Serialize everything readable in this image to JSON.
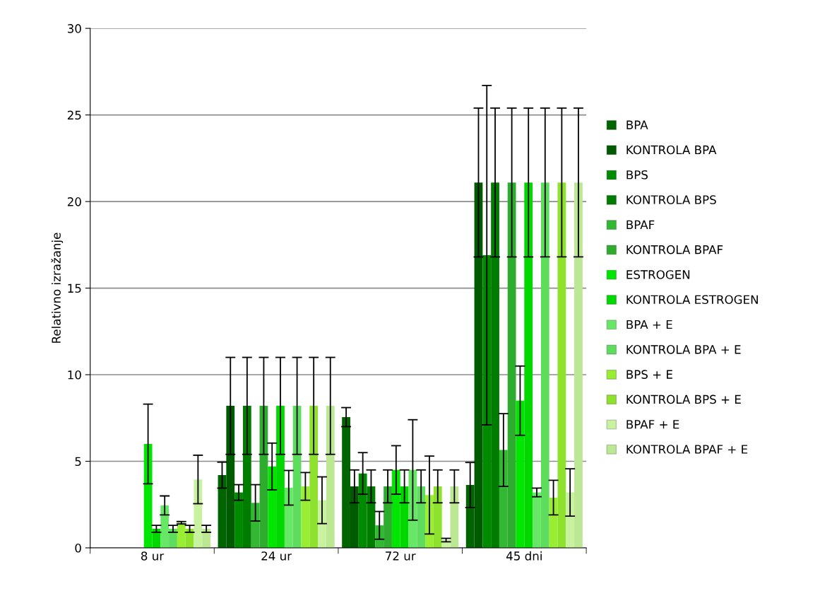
{
  "chart_data": {
    "type": "bar",
    "ylabel": "Relativno izražanje",
    "categories": [
      "8 ur",
      "24 ur",
      "72 ur",
      "45 dni"
    ],
    "ylim": [
      0,
      30
    ],
    "yticks": [
      0,
      5,
      10,
      15,
      20,
      25,
      30
    ],
    "grid": "y",
    "legend": "right",
    "series": [
      {
        "name": "BPA",
        "color": "#006400",
        "values": [
          0,
          4.2,
          7.55,
          3.63
        ],
        "errors": [
          null,
          0.75,
          0.55,
          1.3
        ]
      },
      {
        "name": "KONTROLA BPA",
        "color": "#005a00",
        "values": [
          0,
          8.2,
          3.55,
          21.1
        ],
        "errors": [
          null,
          2.8,
          0.95,
          4.3
        ]
      },
      {
        "name": "BPS",
        "color": "#008a00",
        "values": [
          0,
          3.2,
          4.3,
          16.9
        ],
        "errors": [
          null,
          0.45,
          1.2,
          9.8
        ]
      },
      {
        "name": "KONTROLA BPS",
        "color": "#007c00",
        "values": [
          0,
          8.2,
          3.55,
          21.1
        ],
        "errors": [
          null,
          2.8,
          0.95,
          4.3
        ]
      },
      {
        "name": "BPAF",
        "color": "#33b833",
        "values": [
          0,
          2.6,
          1.3,
          5.65
        ],
        "errors": [
          null,
          1.05,
          0.8,
          2.1
        ]
      },
      {
        "name": "KONTROLA BPAF",
        "color": "#2eac2e",
        "values": [
          0,
          8.2,
          3.55,
          21.1
        ],
        "errors": [
          null,
          2.8,
          0.95,
          4.3
        ]
      },
      {
        "name": "ESTROGEN",
        "color": "#00e600",
        "values": [
          6.0,
          4.7,
          4.5,
          8.5
        ],
        "errors": [
          2.3,
          1.35,
          1.4,
          2.0
        ]
      },
      {
        "name": "KONTROLA ESTROGEN",
        "color": "#00d800",
        "values": [
          1.1,
          8.2,
          3.55,
          21.1
        ],
        "errors": [
          0.2,
          2.8,
          0.95,
          4.3
        ]
      },
      {
        "name": "BPA + E",
        "color": "#66e866",
        "values": [
          2.45,
          3.47,
          4.5,
          3.2
        ],
        "errors": [
          0.55,
          1.0,
          2.9,
          0.25
        ]
      },
      {
        "name": "KONTROLA BPA + E",
        "color": "#5edc5e",
        "values": [
          1.1,
          8.2,
          3.55,
          21.1
        ],
        "errors": [
          0.2,
          2.8,
          0.95,
          4.3
        ]
      },
      {
        "name": "BPS + E",
        "color": "#99ee33",
        "values": [
          1.45,
          3.55,
          3.05,
          2.9
        ],
        "errors": [
          0.07,
          0.8,
          2.25,
          1.0
        ]
      },
      {
        "name": "KONTROLA BPS + E",
        "color": "#8ee22e",
        "values": [
          1.1,
          8.2,
          3.55,
          21.1
        ],
        "errors": [
          0.2,
          2.8,
          0.95,
          4.3
        ]
      },
      {
        "name": "BPAF + E",
        "color": "#c8f2a0",
        "values": [
          3.95,
          2.75,
          0.45,
          3.2
        ],
        "errors": [
          1.4,
          1.35,
          0.1,
          1.37
        ]
      },
      {
        "name": "KONTROLA BPAF + E",
        "color": "#bce894",
        "values": [
          1.1,
          8.2,
          3.55,
          21.1
        ],
        "errors": [
          0.2,
          2.8,
          0.95,
          4.3
        ]
      }
    ]
  }
}
